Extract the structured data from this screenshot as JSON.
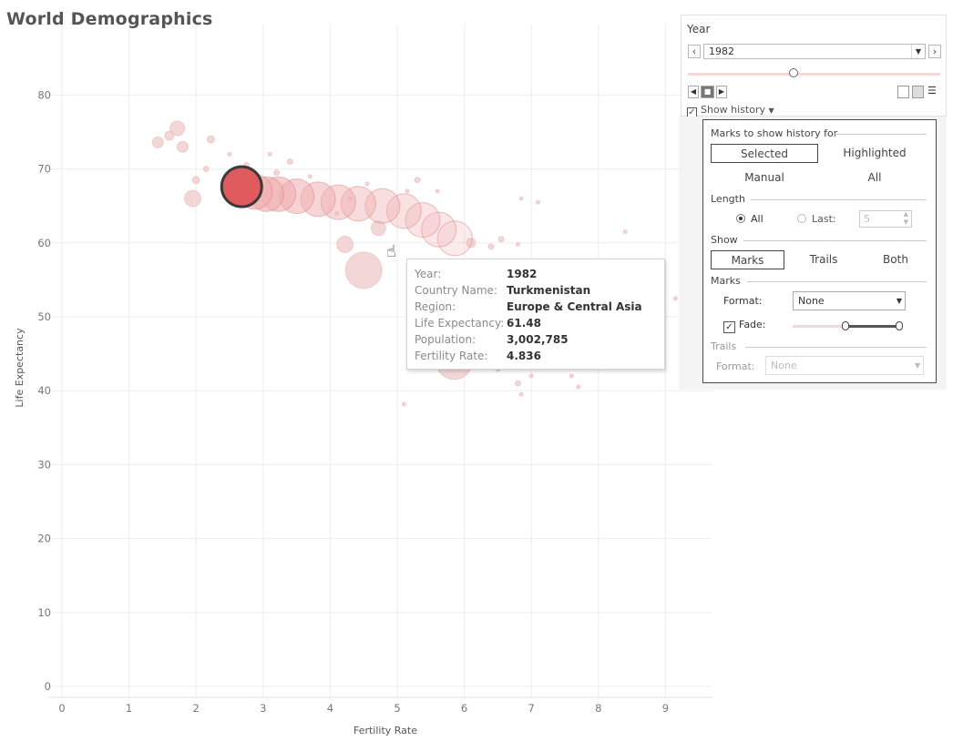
{
  "title": "World Demographics",
  "chart_data": {
    "type": "scatter",
    "title": "World Demographics",
    "xlabel": "Fertility Rate",
    "ylabel": "Life Expectancy",
    "xlim": [
      -0.2,
      9.7
    ],
    "ylim": [
      -1.5,
      89.5
    ],
    "xticks": [
      0,
      1,
      2,
      3,
      4,
      5,
      6,
      7,
      8,
      9
    ],
    "yticks": [
      0,
      10,
      20,
      30,
      40,
      50,
      60,
      70,
      80
    ],
    "grid": true,
    "colors": {
      "highlight": "#e05b5e",
      "history": "#f0b0b2",
      "others": "#efc9ca"
    },
    "history_series": {
      "name": "Turkmenistan",
      "points": [
        {
          "x": 2.68,
          "y": 67.6
        },
        {
          "x": 2.88,
          "y": 66.9
        },
        {
          "x": 3.05,
          "y": 66.6
        },
        {
          "x": 3.23,
          "y": 66.6
        },
        {
          "x": 3.5,
          "y": 66.3
        },
        {
          "x": 3.82,
          "y": 65.9
        },
        {
          "x": 4.12,
          "y": 65.5
        },
        {
          "x": 4.42,
          "y": 65.3
        },
        {
          "x": 4.78,
          "y": 65.0
        },
        {
          "x": 5.1,
          "y": 64.3
        },
        {
          "x": 5.38,
          "y": 63.1
        },
        {
          "x": 5.62,
          "y": 61.8
        },
        {
          "x": 5.86,
          "y": 60.6
        }
      ]
    },
    "other_points": [
      {
        "x": 1.72,
        "y": 75.5
      },
      {
        "x": 1.8,
        "y": 73.0
      },
      {
        "x": 1.43,
        "y": 73.6
      },
      {
        "x": 1.6,
        "y": 74.5
      },
      {
        "x": 1.95,
        "y": 66.0
      },
      {
        "x": 2.0,
        "y": 68.5
      },
      {
        "x": 2.15,
        "y": 70.0
      },
      {
        "x": 2.22,
        "y": 74.0
      },
      {
        "x": 2.5,
        "y": 72.0
      },
      {
        "x": 2.75,
        "y": 70.5
      },
      {
        "x": 3.1,
        "y": 72.0
      },
      {
        "x": 3.4,
        "y": 71.0
      },
      {
        "x": 3.7,
        "y": 69.0
      },
      {
        "x": 3.2,
        "y": 69.5
      },
      {
        "x": 4.3,
        "y": 66.0
      },
      {
        "x": 4.1,
        "y": 64.0
      },
      {
        "x": 4.55,
        "y": 68.0
      },
      {
        "x": 5.3,
        "y": 68.5
      },
      {
        "x": 5.15,
        "y": 67.0
      },
      {
        "x": 4.72,
        "y": 62.0
      },
      {
        "x": 4.22,
        "y": 59.8
      },
      {
        "x": 4.5,
        "y": 56.3
      },
      {
        "x": 6.1,
        "y": 60.0
      },
      {
        "x": 6.4,
        "y": 59.5
      },
      {
        "x": 6.55,
        "y": 60.5
      },
      {
        "x": 6.8,
        "y": 59.8
      },
      {
        "x": 6.85,
        "y": 66.0
      },
      {
        "x": 7.1,
        "y": 65.5
      },
      {
        "x": 8.4,
        "y": 61.5
      },
      {
        "x": 5.85,
        "y": 44.0
      },
      {
        "x": 6.5,
        "y": 43.0
      },
      {
        "x": 6.8,
        "y": 41.0
      },
      {
        "x": 7.0,
        "y": 42.0
      },
      {
        "x": 7.3,
        "y": 44.5
      },
      {
        "x": 7.6,
        "y": 42.0
      },
      {
        "x": 7.7,
        "y": 40.5
      },
      {
        "x": 6.85,
        "y": 39.5
      },
      {
        "x": 5.1,
        "y": 38.2
      },
      {
        "x": 9.15,
        "y": 52.5
      },
      {
        "x": 5.6,
        "y": 67.0
      }
    ]
  },
  "year_control": {
    "label": "Year",
    "value": "1982",
    "slider_fraction": 0.42,
    "show_history_label": "Show history",
    "show_history_checked": true
  },
  "history_panel": {
    "marks_for_label": "Marks to show history for",
    "options_for": [
      "Selected",
      "Highlighted",
      "Manual",
      "All"
    ],
    "selected_for": "Selected",
    "length_label": "Length",
    "length_all": "All",
    "length_last": "Last:",
    "length_last_value": "5",
    "show_label": "Show",
    "show_options": [
      "Marks",
      "Trails",
      "Both"
    ],
    "selected_show": "Marks",
    "marks_label": "Marks",
    "format_label": "Format:",
    "format_value": "None",
    "fade_label": "Fade:",
    "fade_checked": true,
    "trails_label": "Trails",
    "trails_format_label": "Format:",
    "trails_format_value": "None"
  },
  "tooltip": {
    "rows": [
      {
        "key": "Year:",
        "value": "1982"
      },
      {
        "key": "Country Name:",
        "value": "Turkmenistan"
      },
      {
        "key": "Region:",
        "value": "Europe & Central Asia"
      },
      {
        "key": "Life Expectancy:",
        "value": "61.48"
      },
      {
        "key": "Population:",
        "value": "3,002,785"
      },
      {
        "key": "Fertility Rate:",
        "value": "4.836"
      }
    ]
  }
}
